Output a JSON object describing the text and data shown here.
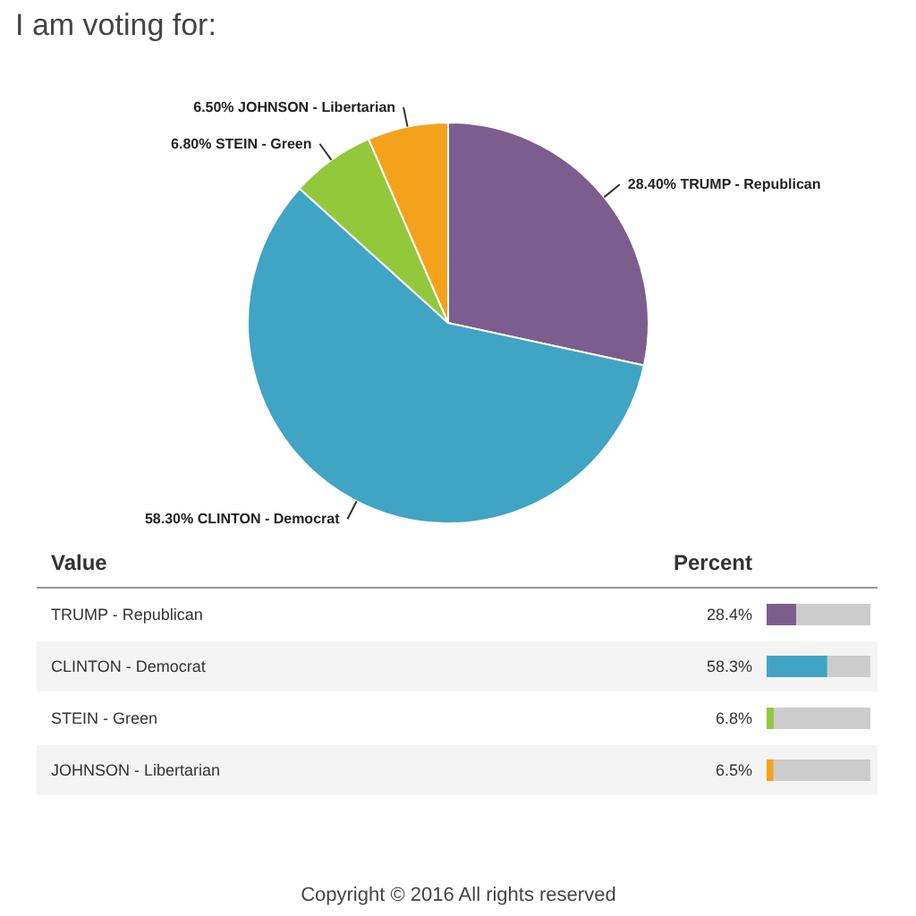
{
  "chart_data": [
    {
      "type": "pie",
      "title": "I am voting for:",
      "categories": [
        "TRUMP - Republican",
        "CLINTON - Democrat",
        "STEIN - Green",
        "JOHNSON - Libertarian"
      ],
      "values": [
        28.4,
        58.3,
        6.8,
        6.5
      ],
      "colors": [
        "#7b5e8d",
        "#40a4c4",
        "#93c83b",
        "#f4a21c"
      ],
      "value_labels": [
        "28.40%",
        "58.30%",
        "6.80%",
        "6.50%"
      ]
    },
    {
      "type": "bar",
      "orientation": "horizontal",
      "categories": [
        "TRUMP - Republican",
        "CLINTON - Democrat",
        "STEIN - Green",
        "JOHNSON - Libertarian"
      ],
      "values": [
        28.4,
        58.3,
        6.8,
        6.5
      ],
      "colors": [
        "#7b5e8d",
        "#40a4c4",
        "#93c83b",
        "#f4a21c"
      ],
      "value_labels": [
        "28.4%",
        "58.3%",
        "6.8%",
        "6.5%"
      ],
      "xlim": [
        0,
        100
      ],
      "tick_labels": false,
      "annotations": [
        "Value",
        "Percent",
        "Copyright © 2016 All rights reserved"
      ]
    }
  ]
}
